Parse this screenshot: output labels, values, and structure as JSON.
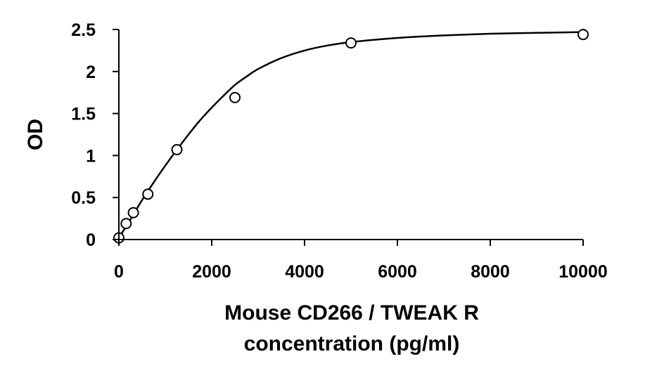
{
  "chart_data": {
    "type": "scatter",
    "title": "",
    "xlabel": [
      "Mouse CD266 / TWEAK R",
      "concentration (pg/ml)"
    ],
    "ylabel": "OD",
    "xlim": [
      0,
      10000
    ],
    "ylim": [
      0,
      2.5
    ],
    "x_ticks": [
      0,
      2000,
      4000,
      6000,
      8000,
      10000
    ],
    "y_ticks": [
      0,
      0.5,
      1,
      1.5,
      2,
      2.5
    ],
    "y_tick_labels": [
      "0",
      "0.5",
      "1",
      "1.5",
      "2",
      "2.5"
    ],
    "grid": false,
    "legend": "none",
    "series": [
      {
        "x": [
          0,
          156,
          312,
          625,
          1250,
          2500,
          5000,
          10000
        ],
        "y": [
          0.02,
          0.19,
          0.32,
          0.54,
          1.07,
          1.69,
          2.34,
          2.44
        ],
        "marker": "open-circle",
        "fit": "4PL-curve"
      }
    ],
    "fit_curve": {
      "x": [
        0,
        250,
        500,
        750,
        1000,
        1250,
        1500,
        1750,
        2000,
        2250,
        2500,
        2750,
        3000,
        3500,
        4000,
        4500,
        5000,
        6000,
        7000,
        8000,
        9000,
        10000
      ],
      "y": [
        0.02,
        0.24,
        0.47,
        0.68,
        0.88,
        1.07,
        1.25,
        1.42,
        1.57,
        1.71,
        1.84,
        1.94,
        2.03,
        2.16,
        2.25,
        2.31,
        2.35,
        2.4,
        2.43,
        2.45,
        2.46,
        2.47
      ]
    },
    "colors": {
      "axis": "#000000",
      "marker_stroke": "#000000",
      "curve": "#000000"
    }
  }
}
